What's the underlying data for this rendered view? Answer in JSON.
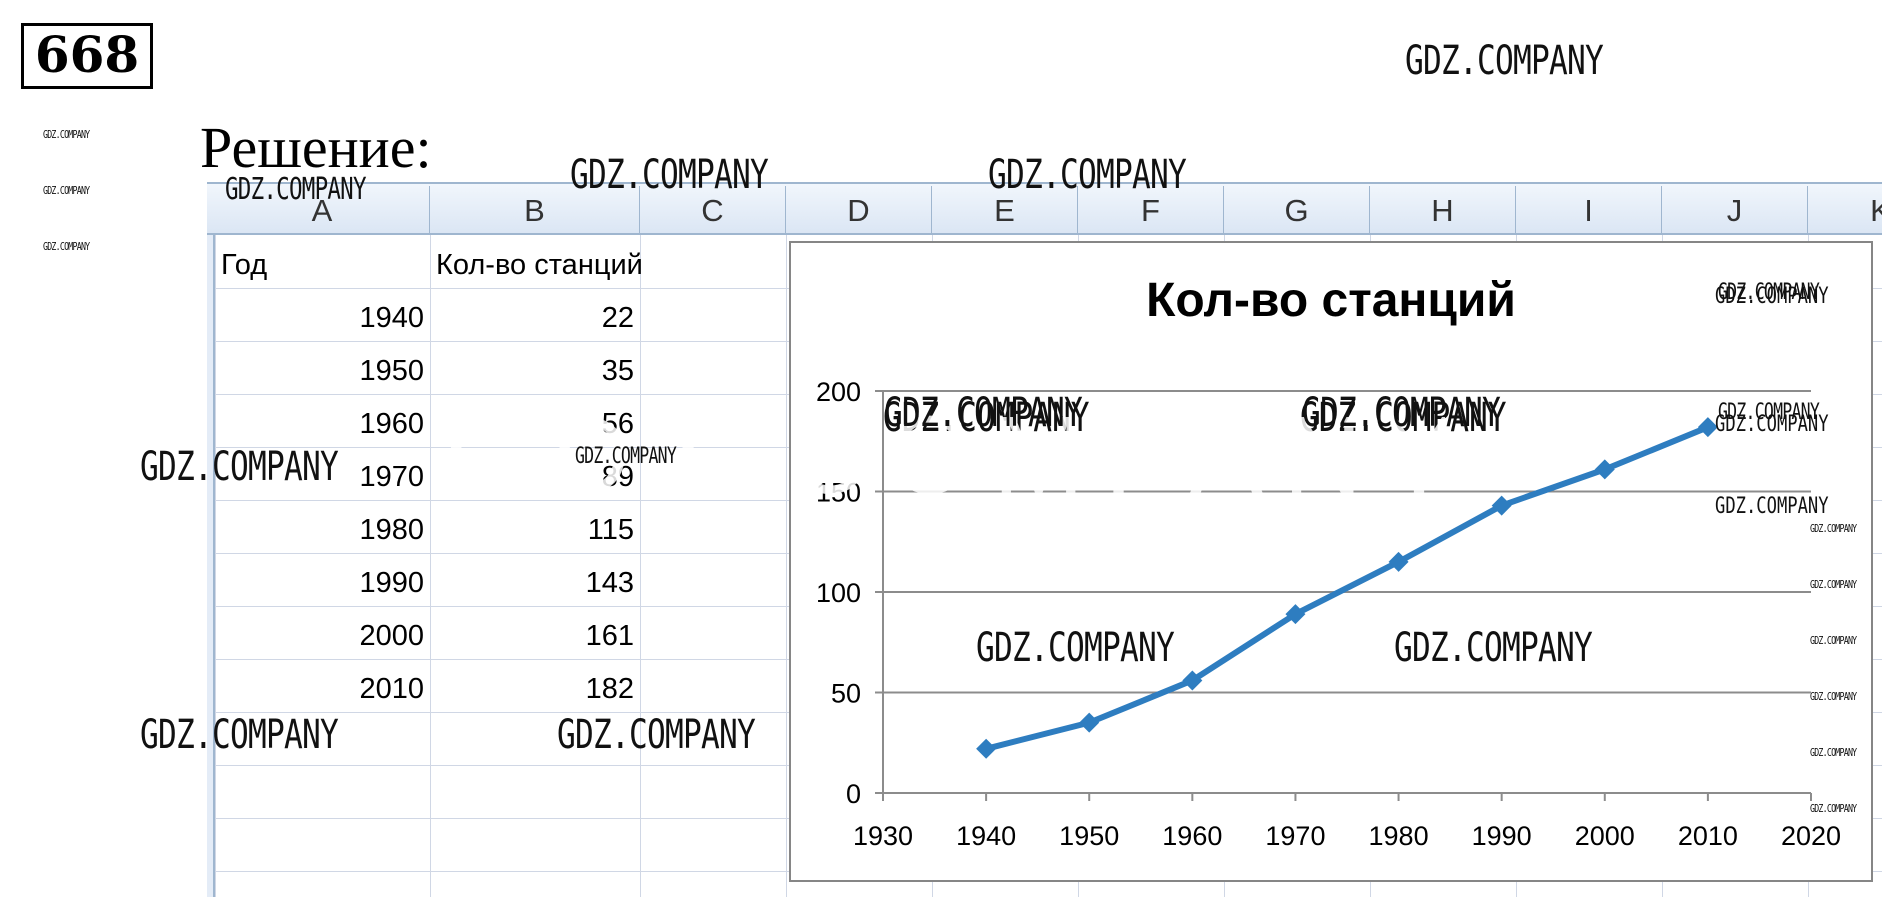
{
  "task_number": "668",
  "solution_heading": "Решение:",
  "spreadsheet": {
    "columns": [
      "A",
      "B",
      "C",
      "D",
      "E",
      "F",
      "G",
      "H",
      "I",
      "J",
      "K"
    ],
    "header_row": [
      "Год",
      "Кол-во станций"
    ],
    "rows": [
      [
        "1940",
        "22"
      ],
      [
        "1950",
        "35"
      ],
      [
        "1960",
        "56"
      ],
      [
        "1970",
        "89"
      ],
      [
        "1980",
        "115"
      ],
      [
        "1990",
        "143"
      ],
      [
        "2000",
        "161"
      ],
      [
        "2010",
        "182"
      ]
    ]
  },
  "chart_data": {
    "type": "line",
    "title": "Кол-во станций",
    "xlabel": "",
    "ylabel": "",
    "x": [
      1940,
      1950,
      1960,
      1970,
      1980,
      1990,
      2000,
      2010
    ],
    "series": [
      {
        "name": "Кол-во станций",
        "values": [
          22,
          35,
          56,
          89,
          115,
          143,
          161,
          182
        ],
        "color": "#2e7dc0",
        "marker": "diamond"
      }
    ],
    "xlim": [
      1930,
      2020
    ],
    "ylim": [
      0,
      200
    ],
    "x_ticks": [
      "1930",
      "1940",
      "1950",
      "1960",
      "1970",
      "1980",
      "1990",
      "2000",
      "2010",
      "2020"
    ],
    "y_ticks": [
      "0",
      "50",
      "100",
      "150",
      "200"
    ],
    "grid": "horizontal",
    "legend": "none"
  },
  "watermark": {
    "text": "GDZ.COMPANY"
  }
}
